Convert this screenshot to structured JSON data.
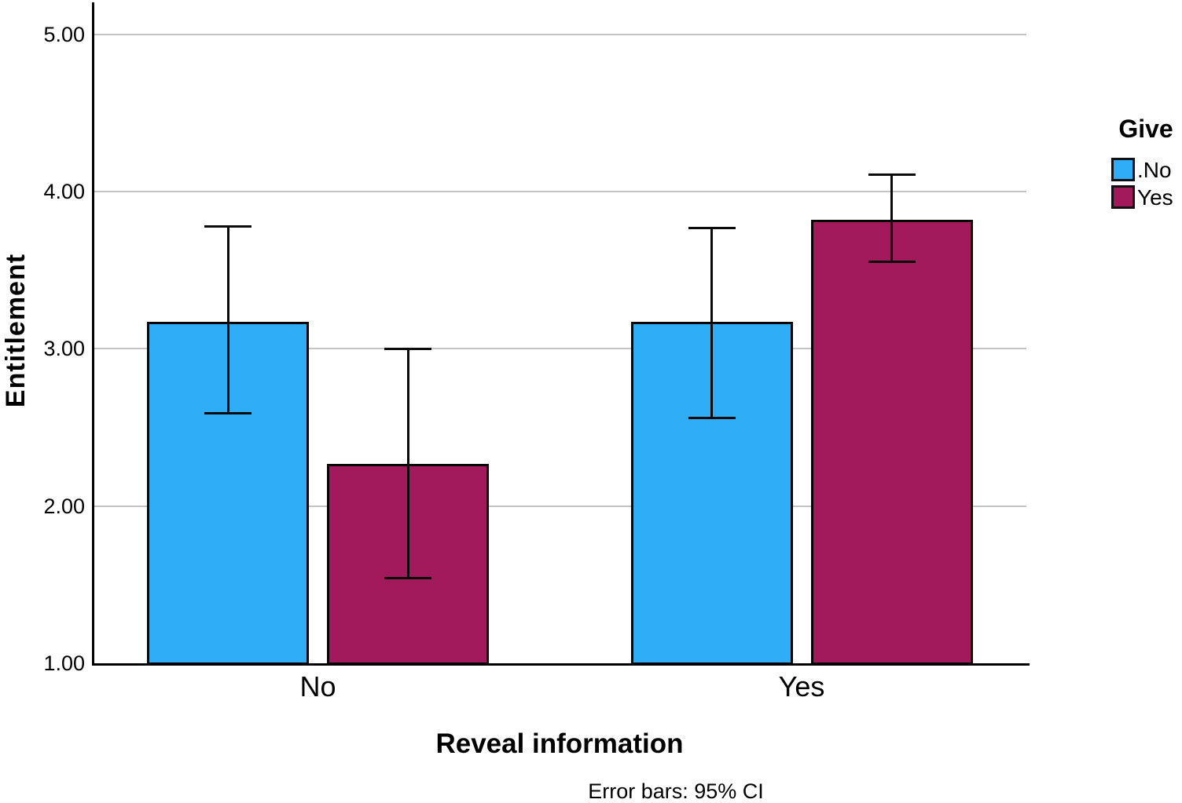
{
  "figure": {
    "background": "#ffffff",
    "footnote": "Error bars: 95% CI"
  },
  "chart_data": {
    "type": "bar",
    "title": "",
    "xlabel": "Reveal information",
    "ylabel": "Entitlement",
    "categories": [
      "No",
      "Yes"
    ],
    "legend": {
      "title": "Give",
      "position": "right",
      "entries": [
        ".No",
        "Yes"
      ]
    },
    "series": [
      {
        "name": ".No",
        "color": "#2FAEF7",
        "values": [
          3.17,
          3.17
        ],
        "ci_low": [
          2.59,
          2.56
        ],
        "ci_high": [
          3.78,
          3.77
        ]
      },
      {
        "name": "Yes",
        "color": "#A21A5C",
        "values": [
          2.27,
          3.82
        ],
        "ci_low": [
          1.54,
          3.55
        ],
        "ci_high": [
          3.0,
          4.11
        ]
      }
    ],
    "error_bars": "95% CI",
    "ylim": [
      1.0,
      5.0
    ],
    "yticks": [
      {
        "value": 1,
        "label": "1.00"
      },
      {
        "value": 2,
        "label": "2.00"
      },
      {
        "value": 3,
        "label": "3.00"
      },
      {
        "value": 4,
        "label": "4.00"
      },
      {
        "value": 5,
        "label": "5.00"
      }
    ],
    "grid": true,
    "colors": {
      "grid": "#c4c4c4",
      "axis": "#000000",
      "text": "#000000"
    }
  }
}
